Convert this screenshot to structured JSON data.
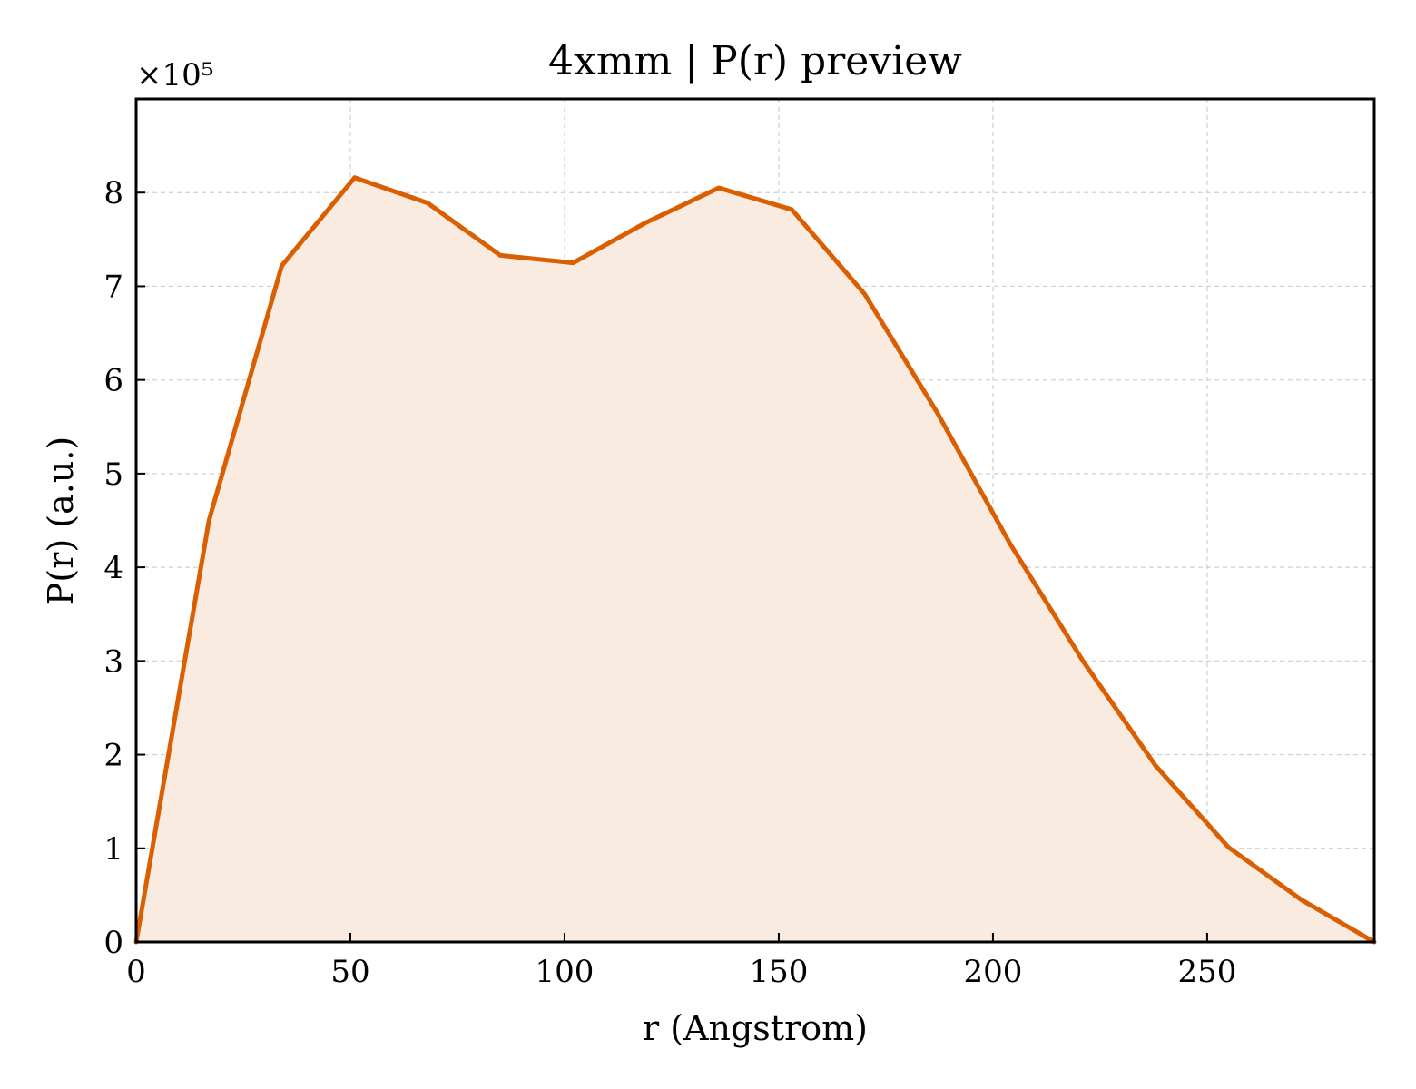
{
  "chart_data": {
    "type": "area",
    "title": "4xmm | P(r) preview",
    "xlabel": "r (Angstrom)",
    "ylabel": "P(r) (a.u.)",
    "y_offset_label": "×10⁵",
    "xlim": [
      0,
      289
    ],
    "ylim": [
      0,
      900000
    ],
    "x_ticks": [
      0,
      50,
      100,
      150,
      200,
      250
    ],
    "x_tick_labels": [
      "0",
      "50",
      "100",
      "150",
      "200",
      "250"
    ],
    "y_ticks": [
      0,
      100000,
      200000,
      300000,
      400000,
      500000,
      600000,
      700000,
      800000
    ],
    "y_tick_labels": [
      "0",
      "1",
      "2",
      "3",
      "4",
      "5",
      "6",
      "7",
      "8"
    ],
    "grid": true,
    "line_color": "#d95f02",
    "fill_color": "#f9ebe0",
    "x": [
      0,
      17,
      34,
      51,
      68,
      85,
      102,
      119,
      136,
      153,
      170,
      187,
      204,
      221,
      238,
      255,
      272,
      289
    ],
    "y": [
      0,
      450000,
      722000,
      816000,
      789000,
      733000,
      725000,
      768000,
      805000,
      782000,
      692000,
      565000,
      425000,
      300000,
      188000,
      101000,
      45000,
      0
    ]
  }
}
